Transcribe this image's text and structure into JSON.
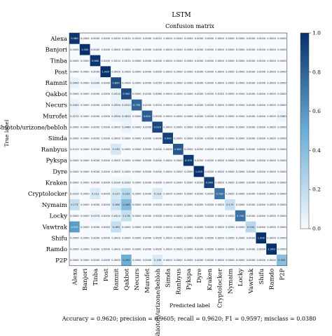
{
  "chart_data": {
    "type": "heatmap",
    "title": "LSTM",
    "subtitle": "Confusion matrix",
    "xlabel": "Predicted label",
    "ylabel": "True label",
    "labels": [
      "Alexa",
      "Banjori",
      "Tinba",
      "Post",
      "Ramnit",
      "Qakbot",
      "Necurs",
      "Murofet",
      "Shiotob/urizone/bebloh",
      "Simda",
      "Ranbyus",
      "Pykspa",
      "Dyre",
      "Kraken",
      "Cryptolocker",
      "Nymaim",
      "Locky",
      "Vawtrak",
      "Shifu",
      "Ramdo",
      "P2P"
    ],
    "colorbar_ticks": [
      "0.0",
      "0.2",
      "0.4",
      "0.6",
      "0.8",
      "1.0"
    ],
    "colorbar_range": [
      0,
      1
    ],
    "values": [
      [
        0.98,
        0.0005,
        0.0,
        0.0,
        0.003,
        0.001,
        0.001,
        0.0,
        0.001,
        0.0,
        0.0,
        0.0,
        0.0,
        0.0,
        0.0,
        0.0,
        0.0,
        0.0,
        0.0,
        0.0,
        0.0
      ],
      [
        0.0,
        1.0,
        0.0,
        0.0,
        0.0,
        0.0,
        0.0,
        0.0,
        0.0,
        0.0,
        0.0,
        0.0,
        0.0,
        0.0,
        0.0,
        0.0,
        0.0,
        0.0,
        0.0,
        0.0,
        0.0
      ],
      [
        0.0,
        0.0,
        0.98,
        0.0,
        0.001,
        0.001,
        0.0,
        0.0,
        0.0,
        0.0,
        0.0,
        0.0,
        0.0,
        0.0,
        0.0,
        0.0,
        0.0,
        0.0,
        0.0,
        0.0,
        0.0
      ],
      [
        0.0,
        0.0,
        0.0,
        1.0,
        0.0,
        0.0,
        0.0,
        0.0,
        0.0,
        0.0,
        0.0,
        0.0,
        0.0,
        0.0,
        0.0,
        0.0,
        0.0,
        0.0,
        0.0,
        0.0,
        0.0
      ],
      [
        0.049,
        0.0,
        0.039,
        0.0,
        0.89,
        0.0,
        0.0,
        0.0,
        0.015,
        0.0,
        0.0,
        0.0,
        0.0,
        0.0,
        0.0,
        0.0,
        0.0,
        0.0,
        0.0,
        0.0,
        0.0
      ],
      [
        0.009,
        0.0,
        0.0,
        0.0,
        0.051,
        0.9,
        0.0,
        0.0,
        0.006,
        0.0,
        0.0,
        0.0,
        0.0,
        0.0,
        0.015,
        0.0,
        0.0,
        0.0,
        0.0,
        0.0,
        0.0
      ],
      [
        0.043,
        0.0,
        0.0,
        0.0,
        0.055,
        0.051,
        0.79,
        0.0,
        0.002,
        0.0,
        0.0,
        0.0,
        0.0,
        0.0,
        0.0,
        0.0,
        0.0,
        0.0,
        0.0,
        0.0,
        0.0
      ],
      [
        0.027,
        0.0,
        0.0,
        0.0,
        0.055,
        0.061,
        0.0,
        0.82,
        0.0,
        0.0,
        0.0,
        0.0,
        0.0,
        0.0,
        0.0,
        0.0,
        0.0,
        0.0,
        0.0,
        0.0,
        0.038
      ],
      [
        0.0,
        0.0,
        0.0,
        0.0,
        0.0,
        0.046,
        0.0,
        0.0,
        0.91,
        0.0,
        0.0,
        0.0,
        0.0,
        0.0,
        0.0,
        0.0,
        0.0,
        0.0,
        0.0,
        0.0,
        0.0
      ],
      [
        0.0,
        0.0,
        0.0,
        0.0,
        0.0,
        0.0,
        0.0,
        0.0,
        0.0,
        0.94,
        0.0,
        0.0,
        0.0,
        0.0,
        0.0,
        0.0,
        0.0,
        0.0,
        0.0,
        0.0,
        0.0
      ],
      [
        0.011,
        0.0,
        0.0,
        0.0,
        0.13,
        0.0,
        0.0,
        0.0,
        0.0,
        0.0,
        0.85,
        0.0,
        0.0,
        0.0,
        0.0,
        0.0,
        0.0,
        0.0,
        0.0,
        0.0,
        0.0
      ],
      [
        0.0,
        0.0,
        0.0,
        0.0,
        0.0,
        0.0,
        0.0,
        0.0,
        0.0,
        0.0,
        0.0,
        0.97,
        0.0,
        0.0,
        0.0,
        0.0,
        0.0,
        0.0,
        0.0,
        0.0,
        0.0
      ],
      [
        0.0,
        0.0,
        0.0,
        0.0,
        0.0,
        0.0,
        0.0,
        0.0,
        0.0,
        0.0,
        0.0,
        0.0,
        1.0,
        0.0,
        0.0,
        0.0,
        0.0,
        0.0,
        0.0,
        0.0,
        0.0
      ],
      [
        0.0,
        0.0,
        0.0,
        0.0,
        0.029,
        0.035,
        0.0,
        0.0,
        0.0,
        0.0,
        0.0,
        0.0,
        0.0,
        0.94,
        0.0,
        0.0,
        0.0,
        0.0,
        0.0,
        0.0,
        0.0
      ],
      [
        0.022,
        0.0,
        0.112,
        0.0,
        0.12,
        0.222,
        0.0,
        0.0,
        0.118,
        0.0,
        0.0,
        0.0,
        0.0,
        0.0,
        0.73,
        0.0,
        0.0,
        0.0,
        0.0,
        0.0,
        0.0
      ],
      [
        0.173,
        0.0,
        0.0,
        0.0,
        0.166,
        0.406,
        0.0,
        0.0,
        0.0,
        0.0,
        0.0,
        0.0,
        0.0,
        0.0,
        0.0,
        0.17,
        0.0,
        0.0,
        0.0,
        0.0,
        0.0
      ],
      [
        0.0,
        0.0,
        0.037,
        0.0,
        0.051,
        0.176,
        0.0,
        0.0,
        0.0,
        0.0,
        0.0,
        0.0,
        0.0,
        0.0,
        0.0,
        0.0,
        0.74,
        0.0,
        0.0,
        0.0,
        0.0
      ],
      [
        0.57,
        0.0,
        0.0,
        0.0,
        0.18,
        0.0,
        0.0,
        0.0,
        0.0,
        0.0,
        0.0,
        0.0,
        0.0,
        0.0,
        0.0,
        0.025,
        0.0,
        0.23,
        0.0,
        0.0,
        0.0
      ],
      [
        0.0,
        0.0,
        0.0,
        0.0,
        0.0,
        0.0,
        0.0,
        0.0,
        0.0,
        0.0,
        0.0,
        0.0,
        0.0,
        0.0,
        0.0,
        0.0,
        0.0,
        0.0,
        1.0,
        0.0,
        0.0
      ],
      [
        0.0,
        0.0,
        0.0,
        0.0,
        0.0,
        0.0,
        0.0,
        0.0,
        0.0,
        0.0,
        0.0,
        0.0,
        0.0,
        0.0,
        0.0,
        0.0,
        0.0,
        0.0,
        0.0,
        1.0,
        0.0
      ],
      [
        0.0,
        0.0,
        0.0,
        0.0,
        0.0,
        0.495,
        0.0,
        0.0,
        0.106,
        0.0,
        0.0,
        0.0,
        0.0,
        0.0,
        0.0,
        0.0,
        0.0,
        0.0,
        0.0,
        0.0,
        0.394
      ]
    ],
    "footer": "Accuracy = 0.9620; precision = 0.9605; recall = 0.9620; F1 = 0.9597; misclass = 0.0380",
    "colors": {
      "low": "#f7fbff",
      "mid": "#6baed6",
      "high": "#08306b"
    },
    "grid": false
  }
}
